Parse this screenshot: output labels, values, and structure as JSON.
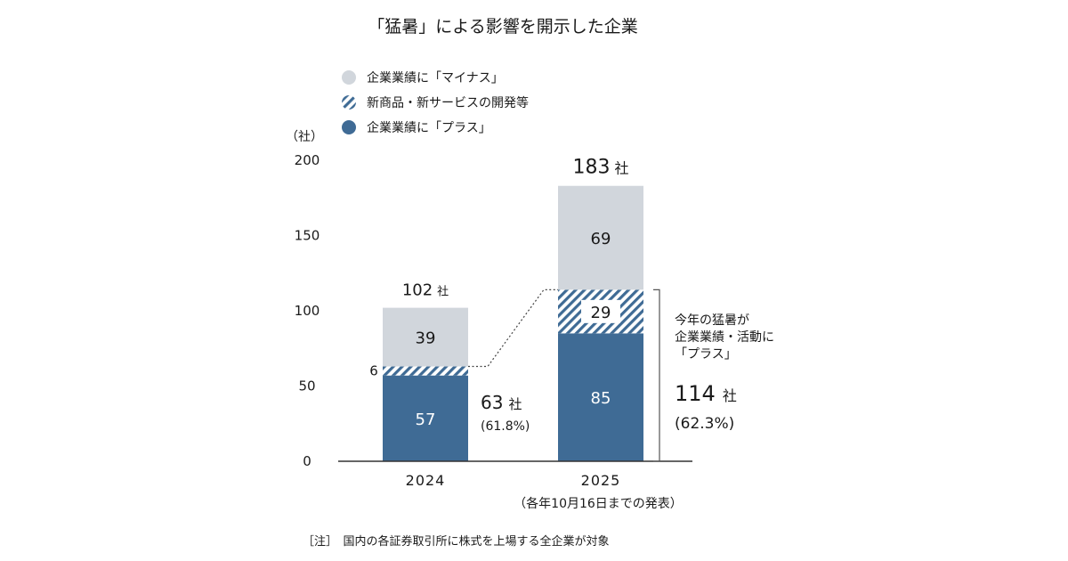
{
  "colors": {
    "minus": "#d1d6dc",
    "plus": "#3f6b95",
    "hatch_fg": "#3f6b95",
    "hatch_bg": "#ffffff",
    "axis": "#333333",
    "text": "#1a1a1a"
  },
  "chart_data": {
    "type": "bar",
    "stacked": true,
    "title": "「猛暑」による影響を開示した企業",
    "y_unit_label": "（社）",
    "ylim": [
      0,
      200
    ],
    "y_ticks": [
      "0",
      "50",
      "100",
      "150",
      "200"
    ],
    "categories": [
      "2024",
      "2025"
    ],
    "x_note": "（各年10月16日までの発表）",
    "series": [
      {
        "key": "plus",
        "name": "企業業績に「プラス」",
        "values": [
          57,
          85
        ],
        "value_labels": [
          "57",
          "85"
        ]
      },
      {
        "key": "new",
        "name": "新商品・新サービスの開発等",
        "values": [
          6,
          29
        ],
        "value_labels": [
          "6",
          "29"
        ]
      },
      {
        "key": "minus",
        "name": "企業業績に「マイナス」",
        "values": [
          39,
          69
        ],
        "value_labels": [
          "39",
          "69"
        ]
      }
    ],
    "legend_order": [
      "minus",
      "new",
      "plus"
    ],
    "legend_position": "top-left",
    "totals": [
      {
        "value": "102",
        "unit": "社"
      },
      {
        "value": "183",
        "unit": "社"
      }
    ],
    "positive_totals": [
      {
        "value": "63",
        "unit": "社",
        "pct": "(61.8%)"
      },
      {
        "value": "114",
        "unit": "社",
        "pct": "(62.3%)"
      }
    ],
    "bracket_note": [
      "今年の猛暑が",
      "企業業績・活動に",
      "「プラス」"
    ],
    "footnote": "［注］　国内の各証券取引所に株式を上場する全企業が対象"
  }
}
